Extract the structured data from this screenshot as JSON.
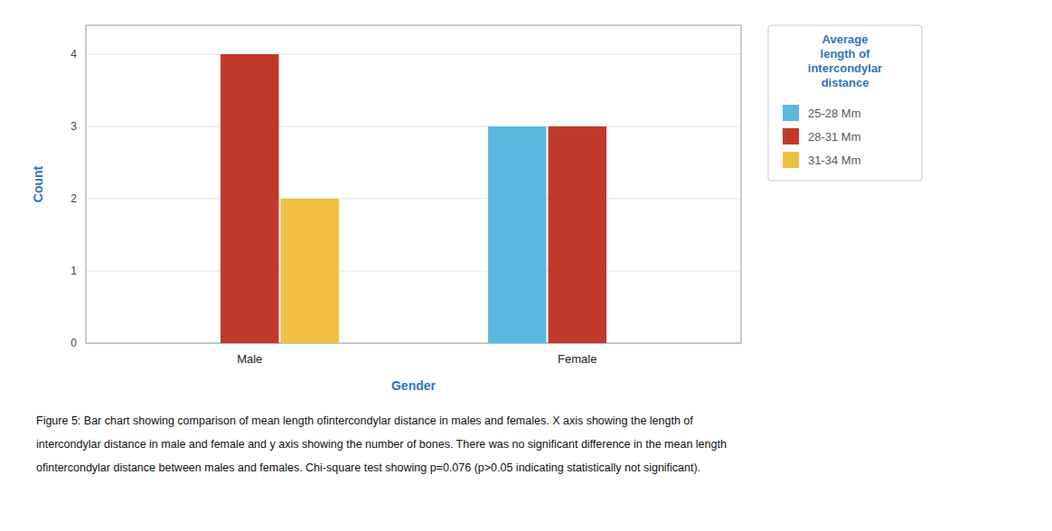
{
  "chart_data": {
    "type": "bar",
    "categories": [
      "Male",
      "Female"
    ],
    "series": [
      {
        "name": "25-28 Mm",
        "color": "#5DB8E0",
        "values": [
          0,
          3
        ]
      },
      {
        "name": "28-31 Mm",
        "color": "#C0392B",
        "values": [
          4,
          3
        ]
      },
      {
        "name": "31-34 Mm",
        "color": "#F0C040",
        "values": [
          2,
          0
        ]
      }
    ],
    "xlabel": "Gender",
    "ylabel": "Count",
    "ylim": [
      0,
      4.4
    ],
    "yticks": [
      0,
      1,
      2,
      3,
      4
    ],
    "grid": true,
    "legend": "right",
    "legend_title": "Average\nlength of\nintercondylar\ndistance",
    "annotations": [
      "Figure 5: Bar chart showing comparison of mean length ofintercondylar distance in males and females. X axis showing the length of",
      "intercondylar distance in male and female and y axis showing the number of bones. There was no significant difference in the mean length",
      "ofintercondylar distance between males and females. Chi-square test showing p=0.076 (p>0.05 indicating statistically not significant)."
    ]
  }
}
